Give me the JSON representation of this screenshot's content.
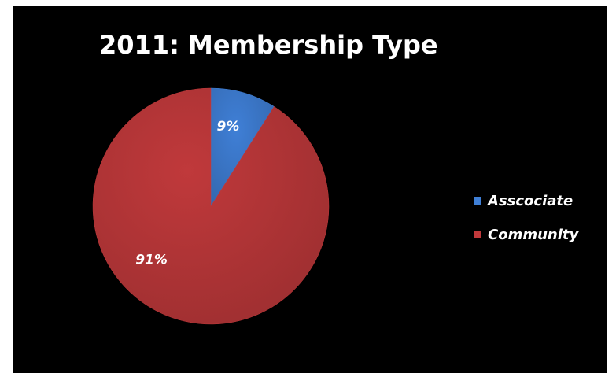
{
  "chart_data": {
    "type": "pie",
    "title": "2011: Membership Type",
    "categories": [
      "Asscociate",
      "Community"
    ],
    "values": [
      9,
      91
    ],
    "data_labels": [
      "9%",
      "91%"
    ],
    "colors": [
      "#3f7fd6",
      "#c0393b"
    ],
    "legend_position": "right"
  }
}
